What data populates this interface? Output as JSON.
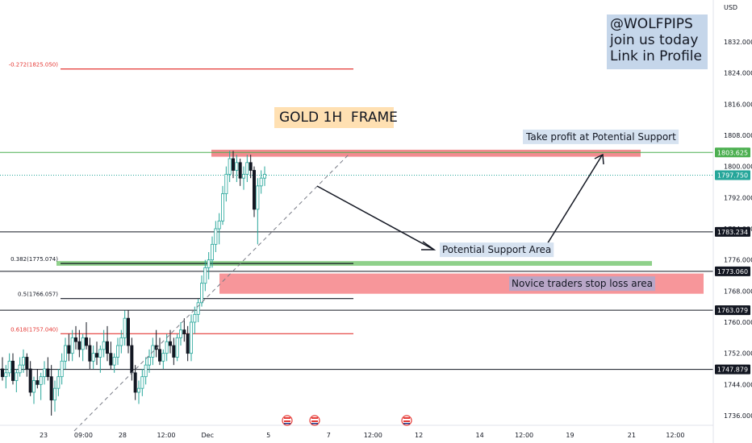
{
  "watermark": {
    "line1": "@WOLFPIPS",
    "line2": "join us today",
    "line3": "Link in Profile"
  },
  "colors": {
    "up": "#26a69a",
    "down": "#131722",
    "resistance": "#f28b8f",
    "support_green": "#7cc576",
    "fib_red": "#e53935"
  },
  "chart_data": {
    "type": "candlestick",
    "title": "GOLD 1H  FRAME",
    "currency": "USD",
    "ylim": [
      1733,
      1838
    ],
    "y_ticks": [
      1736,
      1744,
      1752,
      1760,
      1768,
      1776,
      1784,
      1792,
      1800,
      1808,
      1816,
      1824,
      1832
    ],
    "y_tick_labels": [
      "1736.000",
      "1744.000",
      "1752.000",
      "1760.000",
      "1768.000",
      "1776.000",
      "1784.000",
      "1792.000",
      "1800.000",
      "1808.000",
      "1816.000",
      "1824.000",
      "1832.000"
    ],
    "x_tick_labels": [
      {
        "label": "23",
        "x": 0.058
      },
      {
        "label": "09:00",
        "x": 0.111
      },
      {
        "label": "28",
        "x": 0.163
      },
      {
        "label": "12:00",
        "x": 0.221
      },
      {
        "label": "Dec",
        "x": 0.276
      },
      {
        "label": "5",
        "x": 0.357
      },
      {
        "label": "7",
        "x": 0.437
      },
      {
        "label": "12:00",
        "x": 0.496
      },
      {
        "label": "12",
        "x": 0.557
      },
      {
        "label": "14",
        "x": 0.638
      },
      {
        "label": "12:00",
        "x": 0.697
      },
      {
        "label": "19",
        "x": 0.758
      },
      {
        "label": "21",
        "x": 0.84
      },
      {
        "label": "12:00",
        "x": 0.898
      }
    ],
    "price_labels": [
      {
        "value": "1803.625",
        "price": 1803.6,
        "bg": "#4caf50"
      },
      {
        "value": "1797.750",
        "price": 1797.75,
        "bg": "#26a69a"
      },
      {
        "value": "1783.234",
        "price": 1783.2,
        "bg": "#131722"
      },
      {
        "value": "1773.060",
        "price": 1773.06,
        "bg": "#131722"
      },
      {
        "value": "1763.079",
        "price": 1763.08,
        "bg": "#131722"
      },
      {
        "value": "1747.879",
        "price": 1747.88,
        "bg": "#131722"
      }
    ],
    "fib_levels": [
      {
        "label": "-0.272(1825.050)",
        "price": 1825.05,
        "color": "#e53935"
      },
      {
        "label": "0.382(1775.074)",
        "price": 1775.07,
        "color": "#131722"
      },
      {
        "label": "0.5(1766.057)",
        "price": 1766.06,
        "color": "#131722"
      },
      {
        "label": "0.618(1757.040)",
        "price": 1757.04,
        "color": "#e53935"
      }
    ],
    "horizontal_lines": [
      1803.6,
      1797.75,
      1783.2,
      1773.06,
      1763.08,
      1747.88
    ],
    "zones": [
      {
        "name": "resistance",
        "label": "Take profit at Potential Support",
        "top": 1804.3,
        "bottom": 1802.5
      },
      {
        "name": "support",
        "label": "Potential Support Area",
        "top": 1775.7,
        "bottom": 1774.5
      },
      {
        "name": "stoploss",
        "label": "Novice traders stop loss area",
        "top": 1772.5,
        "bottom": 1767.3
      }
    ],
    "candles": [
      [
        0,
        1748,
        1751,
        1745,
        1746
      ],
      [
        1,
        1746,
        1749,
        1743,
        1747
      ],
      [
        2,
        1747,
        1752,
        1746,
        1750
      ],
      [
        3,
        1750,
        1752,
        1744,
        1745
      ],
      [
        4,
        1745,
        1748,
        1742,
        1747
      ],
      [
        5,
        1747,
        1751,
        1746,
        1749
      ],
      [
        6,
        1749,
        1753,
        1747,
        1751
      ],
      [
        7,
        1751,
        1752,
        1746,
        1748
      ],
      [
        8,
        1748,
        1750,
        1741,
        1742
      ],
      [
        9,
        1742,
        1746,
        1739,
        1745
      ],
      [
        10,
        1745,
        1748,
        1743,
        1744
      ],
      [
        11,
        1744,
        1747,
        1740,
        1746
      ],
      [
        12,
        1746,
        1750,
        1744,
        1748
      ],
      [
        13,
        1748,
        1751,
        1745,
        1746
      ],
      [
        14,
        1746,
        1749,
        1736,
        1740
      ],
      [
        15,
        1740,
        1745,
        1737,
        1743
      ],
      [
        16,
        1743,
        1748,
        1741,
        1746
      ],
      [
        17,
        1746,
        1752,
        1744,
        1750
      ],
      [
        18,
        1750,
        1756,
        1748,
        1754
      ],
      [
        19,
        1754,
        1757,
        1750,
        1752
      ],
      [
        20,
        1752,
        1758,
        1750,
        1756
      ],
      [
        21,
        1756,
        1759,
        1753,
        1755
      ],
      [
        22,
        1755,
        1758,
        1751,
        1753
      ],
      [
        23,
        1753,
        1757,
        1750,
        1756
      ],
      [
        24,
        1756,
        1760,
        1753,
        1754
      ],
      [
        25,
        1754,
        1756,
        1748,
        1750
      ],
      [
        26,
        1750,
        1754,
        1748,
        1752
      ],
      [
        27,
        1752,
        1755,
        1749,
        1751
      ],
      [
        28,
        1751,
        1754,
        1747,
        1753
      ],
      [
        29,
        1753,
        1758,
        1751,
        1755
      ],
      [
        30,
        1755,
        1759,
        1750,
        1752
      ],
      [
        31,
        1752,
        1755,
        1748,
        1749
      ],
      [
        32,
        1749,
        1752,
        1747,
        1751
      ],
      [
        33,
        1751,
        1756,
        1749,
        1754
      ],
      [
        34,
        1754,
        1758,
        1752,
        1756
      ],
      [
        35,
        1756,
        1763,
        1754,
        1761
      ],
      [
        36,
        1761,
        1763,
        1752,
        1754
      ],
      [
        37,
        1754,
        1756,
        1745,
        1747
      ],
      [
        38,
        1747,
        1749,
        1740,
        1742
      ],
      [
        39,
        1742,
        1745,
        1739,
        1743
      ],
      [
        40,
        1743,
        1748,
        1741,
        1746
      ],
      [
        41,
        1746,
        1751,
        1744,
        1749
      ],
      [
        42,
        1749,
        1753,
        1747,
        1751
      ],
      [
        43,
        1751,
        1756,
        1749,
        1754
      ],
      [
        44,
        1754,
        1758,
        1751,
        1753
      ],
      [
        45,
        1753,
        1756,
        1749,
        1750
      ],
      [
        46,
        1750,
        1753,
        1748,
        1752
      ],
      [
        47,
        1752,
        1757,
        1750,
        1755
      ],
      [
        48,
        1755,
        1758,
        1752,
        1754
      ],
      [
        49,
        1754,
        1756,
        1749,
        1751
      ],
      [
        50,
        1751,
        1757,
        1750,
        1756
      ],
      [
        51,
        1756,
        1760,
        1754,
        1758
      ],
      [
        52,
        1758,
        1761,
        1755,
        1757
      ],
      [
        53,
        1757,
        1759,
        1750,
        1752
      ],
      [
        54,
        1752,
        1762,
        1750,
        1760
      ],
      [
        55,
        1760,
        1764,
        1757,
        1762
      ],
      [
        56,
        1762,
        1766,
        1760,
        1765
      ],
      [
        57,
        1765,
        1772,
        1764,
        1770
      ],
      [
        58,
        1770,
        1776,
        1768,
        1774
      ],
      [
        59,
        1774,
        1778,
        1771,
        1776
      ],
      [
        60,
        1776,
        1782,
        1774,
        1780
      ],
      [
        61,
        1780,
        1786,
        1778,
        1784
      ],
      [
        62,
        1784,
        1788,
        1780,
        1786
      ],
      [
        63,
        1786,
        1795,
        1785,
        1793
      ],
      [
        64,
        1793,
        1800,
        1791,
        1798
      ],
      [
        65,
        1798,
        1804,
        1796,
        1802
      ],
      [
        66,
        1802,
        1804,
        1797,
        1799
      ],
      [
        67,
        1799,
        1803,
        1796,
        1801
      ],
      [
        68,
        1801,
        1802,
        1795,
        1797
      ],
      [
        69,
        1797,
        1800,
        1794,
        1798
      ],
      [
        70,
        1798,
        1803,
        1796,
        1801
      ],
      [
        71,
        1801,
        1803,
        1797,
        1799
      ],
      [
        72,
        1799,
        1800,
        1787,
        1789
      ],
      [
        73,
        1789,
        1797,
        1780,
        1795
      ],
      [
        74,
        1795,
        1799,
        1793,
        1797
      ],
      [
        75,
        1797,
        1800,
        1795,
        1798
      ]
    ]
  }
}
